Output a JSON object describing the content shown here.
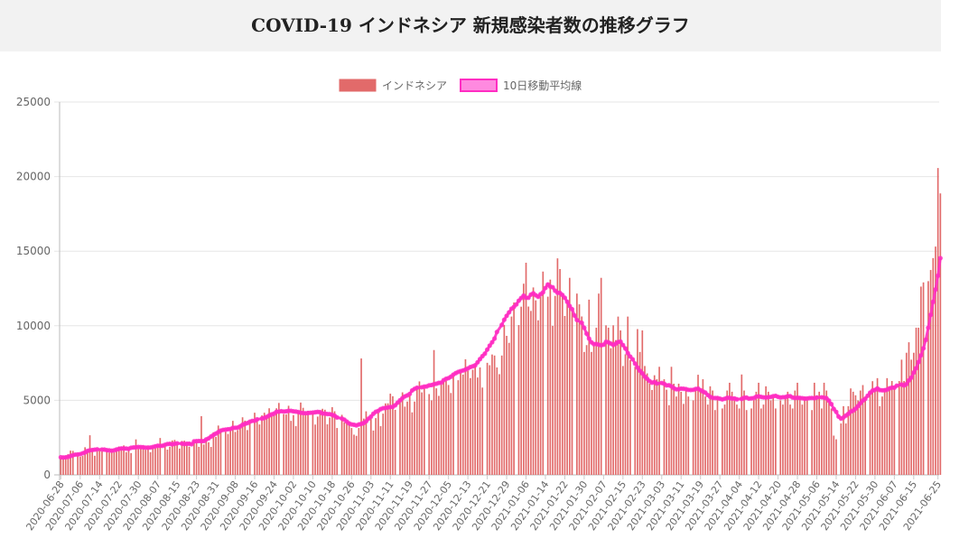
{
  "page": {
    "title": "COVID-19 インドネシア 新規感染者数の推移グラフ"
  },
  "chart_data": {
    "type": "bar",
    "title": "COVID-19 インドネシア 新規感染者数の推移グラフ",
    "xlabel": "",
    "ylabel": "",
    "ylim": [
      0,
      25000
    ],
    "yticks": [
      0,
      5000,
      10000,
      15000,
      20000,
      25000
    ],
    "grid": true,
    "legend_position": "top-center",
    "x_start": "2020-06-28",
    "x_end": "2021-06-26",
    "x_tick_labels": [
      "2020-06-28",
      "2020-07-06",
      "2020-07-14",
      "2020-07-22",
      "2020-07-30",
      "2020-08-07",
      "2020-08-15",
      "2020-08-23",
      "2020-08-31",
      "2020-09-08",
      "2020-09-16",
      "2020-09-24",
      "2020-10-02",
      "2020-10-10",
      "2020-10-18",
      "2020-10-26",
      "2020-11-03",
      "2020-11-11",
      "2020-11-19",
      "2020-11-27",
      "2020-12-05",
      "2020-12-13",
      "2020-12-21",
      "2020-12-29",
      "2021-01-06",
      "2021-01-14",
      "2021-01-22",
      "2021-01-30",
      "2021-02-07",
      "2021-02-15",
      "2021-02-23",
      "2021-03-03",
      "2021-03-11",
      "2021-03-19",
      "2021-03-27",
      "2021-04-04",
      "2021-04-12",
      "2021-04-20",
      "2021-04-28",
      "2021-05-06",
      "2021-05-14",
      "2021-05-22",
      "2021-05-30",
      "2021-06-07",
      "2021-06-15",
      "2021-06-25"
    ],
    "series": [
      {
        "name": "インドネシア",
        "type": "bar",
        "color": "#e26a6a",
        "values": [
          1200,
          1082,
          1293,
          1385,
          1624,
          1611,
          1447,
          1209,
          1268,
          1853,
          1671,
          2657,
          1681,
          1282,
          1591,
          1752,
          1574,
          1693,
          1489,
          1639,
          1519,
          1761,
          1906,
          1868,
          1976,
          1525,
          1752,
          1461,
          2381,
          1748,
          1907,
          1943,
          1679,
          1881,
          1519,
          1922,
          1815,
          1942,
          2473,
          1893,
          1693,
          1882,
          2307,
          2345,
          2098,
          1762,
          2277,
          2293,
          2081,
          1893,
          2266,
          2266,
          1882,
          3935,
          2035,
          2306,
          2183,
          1873,
          2858,
          2549,
          3308,
          3075,
          2892,
          2743,
          3128,
          3622,
          2880,
          3003,
          3141,
          3861,
          3637,
          3003,
          3636,
          4168,
          3737,
          3380,
          3989,
          4167,
          3989,
          4465,
          3958,
          4004,
          4465,
          4823,
          4071,
          4049,
          4634,
          3622,
          4007,
          3267,
          4284,
          4850,
          4497,
          4232,
          4301,
          4105,
          3373,
          3906,
          4094,
          4432,
          4369,
          3389,
          3843,
          4538,
          4267,
          3143,
          4029,
          3520,
          3602,
          3565,
          3143,
          2696,
          2618,
          3143,
          7806,
          3778,
          4262,
          3770,
          2973,
          3807,
          4173,
          3265,
          4106,
          4792,
          4798,
          5444,
          5272,
          4360,
          4998,
          5534,
          4576,
          4917,
          5418,
          4192,
          4917,
          5828,
          6267,
          5533,
          5803,
          5418,
          4998,
          8369,
          5803,
          5298,
          6058,
          6305,
          6310,
          6027,
          5489,
          6725,
          6347,
          6848,
          6725,
          7751,
          6982,
          6489,
          7047,
          7445,
          6528,
          7203,
          5854,
          7514,
          7354,
          8072,
          8002,
          7203,
          6753,
          8002,
          10047,
          9321,
          8854,
          10617,
          11557,
          10046,
          11278,
          12818,
          14224,
          11287,
          10994,
          12568,
          11703,
          10365,
          11948,
          13632,
          11948,
          13094,
          9994,
          12001,
          14518,
          13802,
          12156,
          10656,
          11749,
          13212,
          10994,
          12156,
          11436,
          10622,
          8242,
          8700,
          11749,
          8242,
          8700,
          9869,
          12156,
          13212,
          10029,
          9869,
          8493,
          10029,
          9039,
          10614,
          9687,
          7300,
          8085,
          10614,
          7698,
          7247,
          9775,
          8242,
          9687,
          7300,
          6807,
          6114,
          5694,
          6680,
          6412,
          7247,
          6412,
          5712,
          4672,
          7247,
          6114,
          5254,
          6114,
          5576,
          4759,
          5694,
          5254,
          4997,
          5694,
          6713,
          5714,
          6412,
          5254,
          4714,
          5937,
          5656,
          4345,
          5254,
          4452,
          4714,
          5656,
          6177,
          5576,
          4997,
          4714,
          4452,
          6731,
          5656,
          4345,
          4452,
          4997,
          5576,
          6177,
          4452,
          4714,
          5937,
          5576,
          4997,
          5254,
          4452,
          4997,
          4714,
          5337,
          5576,
          4714,
          4452,
          5656,
          6177,
          5254,
          4714,
          5254,
          4997,
          4345,
          6177,
          5337,
          5576,
          4452,
          6177,
          5656,
          4997,
          4452,
          2633,
          2385,
          3448,
          4608,
          3448,
          4608,
          5797,
          5576,
          5337,
          4997,
          5656,
          6021,
          5254,
          5656,
          6282,
          5797,
          6486,
          4608,
          5254,
          5797,
          6486,
          5942,
          6294,
          5797,
          6293,
          7725,
          6294,
          8189,
          8892,
          7725,
          8189,
          9868,
          9868,
          12624,
          12906,
          12990,
          13737,
          14536,
          15308,
          20574,
          18872
        ]
      },
      {
        "name": "10日移動平均線",
        "type": "line",
        "color": "#ff2dc2",
        "values": [
          1180,
          1165,
          1178,
          1210,
          1262,
          1320,
          1358,
          1372,
          1388,
          1450,
          1508,
          1604,
          1652,
          1668,
          1690,
          1712,
          1700,
          1695,
          1660,
          1640,
          1622,
          1646,
          1702,
          1742,
          1775,
          1770,
          1762,
          1748,
          1818,
          1838,
          1852,
          1872,
          1860,
          1852,
          1822,
          1832,
          1836,
          1872,
          1916,
          1955,
          1948,
          1950,
          2016,
          2070,
          2082,
          2050,
          2084,
          2114,
          2098,
          2070,
          2088,
          2090,
          2054,
          2246,
          2262,
          2268,
          2270,
          2264,
          2376,
          2448,
          2574,
          2676,
          2768,
          2870,
          2968,
          3016,
          3034,
          3060,
          3076,
          3156,
          3156,
          3170,
          3252,
          3360,
          3420,
          3472,
          3562,
          3620,
          3628,
          3722,
          3776,
          3822,
          3894,
          3984,
          4056,
          4110,
          4230,
          4240,
          4272,
          4250,
          4260,
          4296,
          4294,
          4260,
          4244,
          4216,
          4166,
          4146,
          4134,
          4146,
          4164,
          4178,
          4198,
          4222,
          4208,
          4120,
          4110,
          4080,
          4074,
          4028,
          3966,
          3850,
          3780,
          3702,
          3576,
          3450,
          3384,
          3360,
          3320,
          3380,
          3420,
          3482,
          3592,
          3770,
          3904,
          4100,
          4230,
          4290,
          4412,
          4470,
          4486,
          4520,
          4550,
          4560,
          4668,
          4844,
          5000,
          5150,
          5264,
          5330,
          5430,
          5662,
          5770,
          5844,
          5876,
          5918,
          5930,
          6002,
          6024,
          6080,
          6114,
          6168,
          6184,
          6352,
          6440,
          6488,
          6584,
          6724,
          6826,
          6902,
          6954,
          7002,
          7064,
          7134,
          7230,
          7280,
          7346,
          7548,
          7762,
          7960,
          8128,
          8404,
          8664,
          8890,
          9142,
          9584,
          10056,
          10402,
          10666,
          10898,
          11140,
          11264,
          11428,
          11680,
          11858,
          12018,
          11876,
          11876,
          12086,
          12176,
          12048,
          11946,
          12114,
          12238,
          12534,
          12768,
          12624,
          12578,
          12350,
          12214,
          12202,
          12064,
          11876,
          11602,
          11324,
          11112,
          10688,
          10384,
          10196,
          9860,
          9468,
          9138,
          8888,
          8770,
          8780,
          8728,
          8690,
          8730,
          8922,
          8888,
          8804,
          8716,
          8794,
          8910,
          8934,
          8702,
          8476,
          8164,
          7934,
          7750,
          7460,
          7196,
          6978,
          6810,
          6592,
          6442,
          6290,
          6182,
          6232,
          6126,
          6162,
          6110,
          6002,
          6010,
          5934,
          5814,
          5738,
          5748,
          5786,
          5774,
          5754,
          5700,
          5692,
          5700,
          5760,
          5786,
          5680,
          5592,
          5514,
          5352,
          5234,
          5164,
          5154,
          5154,
          5106,
          5064,
          5104,
          5172,
          5166,
          5120,
          5122,
          5070,
          5094,
          5168,
          5184,
          5112,
          5132,
          5154,
          5246,
          5270,
          5228,
          5200,
          5186,
          5212,
          5226,
          5276,
          5300,
          5232,
          5190,
          5210,
          5212,
          5278,
          5278,
          5192,
          5156,
          5174,
          5160,
          5140,
          5108,
          5124,
          5150,
          5158,
          5140,
          5186,
          5202,
          5180,
          5138,
          4978,
          4746,
          4418,
          4226,
          3906,
          3774,
          3848,
          3980,
          4092,
          4240,
          4314,
          4436,
          4614,
          4810,
          4986,
          5098,
          5308,
          5508,
          5650,
          5700,
          5798,
          5690,
          5670,
          5674,
          5718,
          5800,
          5854,
          5850,
          5982,
          6062,
          6000,
          6090,
          6338,
          6520,
          6864,
          7150,
          7566,
          8018,
          8488,
          9056,
          9864,
          10732,
          11600,
          12430,
          13358,
          14532
        ]
      }
    ]
  }
}
